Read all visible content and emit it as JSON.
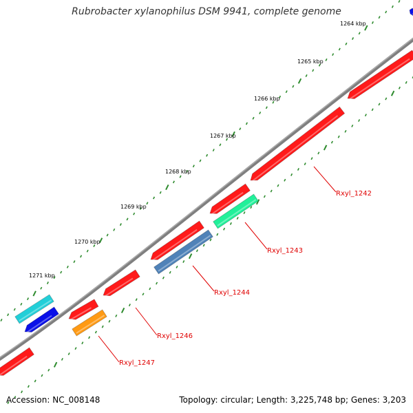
{
  "title": "Rubrobacter xylanophilus DSM 9941, complete genome",
  "accession": "Accession: NC_008148",
  "summary": "Topology: circular; Length: 3,225,748 bp; Genes: 3,203",
  "colors": {
    "backbone": "#7f7f7f",
    "tick": "#2e8b2e",
    "gene_red": "#ff1a1a",
    "gene_cyan": "#22cfd8",
    "gene_blue": "#0a10e8",
    "gene_green": "#22f09a",
    "gene_steel": "#4f82b8",
    "gene_orange": "#ff9a14",
    "label": "#e00000"
  },
  "scale_labels": [
    "1264 kbp",
    "1265 kbp",
    "1266 kbp",
    "1267 kbp",
    "1268 kbp",
    "1269 kbp",
    "1270 kbp",
    "1271 kbp"
  ],
  "gene_labels": [
    "Rxyl_1242",
    "Rxyl_1243",
    "Rxyl_1244",
    "Rxyl_1246",
    "Rxyl_1247"
  ]
}
